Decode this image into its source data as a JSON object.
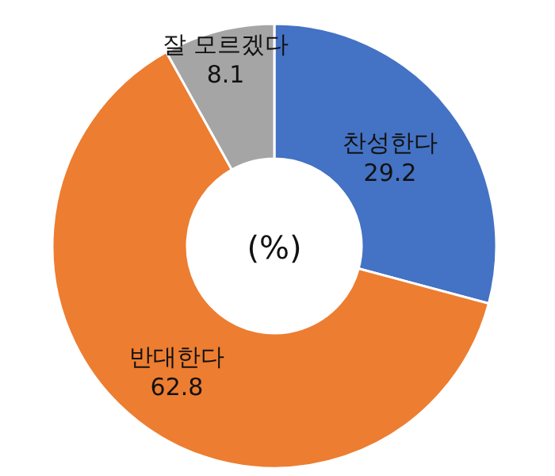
{
  "chart_data": {
    "type": "donut",
    "categories": [
      "찬성한다",
      "반대한다",
      "잘 모르겠다"
    ],
    "values": [
      29.2,
      62.8,
      8.1
    ],
    "colors": [
      "#4472c4",
      "#ed7d31",
      "#a5a5a5"
    ],
    "data_labels": true,
    "annotations": [
      "(%)"
    ]
  }
}
